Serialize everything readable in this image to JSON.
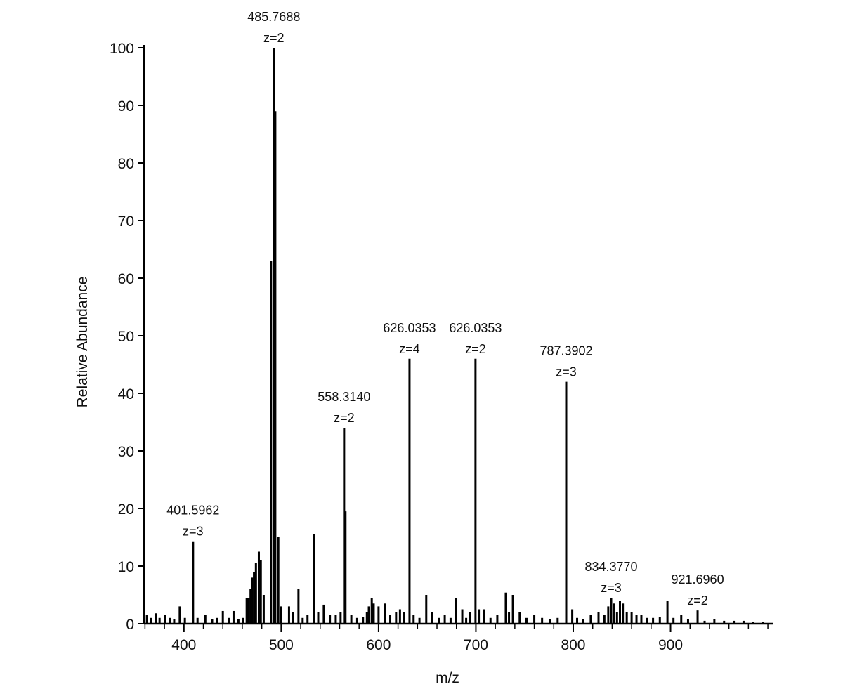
{
  "chart_data": {
    "type": "stem",
    "xlabel": "m/z",
    "ylabel": "Relative Abundance",
    "xlim": [
      359,
      1005
    ],
    "xticks": [
      400,
      500,
      600,
      700,
      800,
      900
    ],
    "xminorticks": [
      360,
      380,
      420,
      440,
      460,
      480,
      520,
      540,
      560,
      580,
      620,
      640,
      660,
      680,
      720,
      740,
      760,
      780,
      820,
      840,
      860,
      880,
      920,
      940,
      960,
      980,
      1000
    ],
    "ylim": [
      0,
      100
    ],
    "yticks": [
      0,
      10,
      20,
      30,
      40,
      50,
      60,
      70,
      80,
      90,
      100
    ],
    "color": "#000000",
    "x": [
      362,
      366,
      371,
      375,
      381,
      386,
      390,
      395.7,
      401,
      409.4,
      414,
      422,
      429,
      434,
      440,
      446,
      451,
      456,
      461,
      464.5,
      466.5,
      468.5,
      470,
      472,
      474,
      477,
      479,
      482,
      489.5,
      492.4,
      493.9,
      497,
      500,
      508,
      512,
      517.7,
      522,
      527,
      533.6,
      538,
      543.7,
      550,
      556,
      561,
      564.6,
      566,
      572,
      578,
      584,
      588,
      590,
      593,
      595,
      600,
      606.5,
      612,
      618,
      622,
      626,
      631.8,
      636,
      642,
      649,
      655,
      662,
      668,
      674,
      679.4,
      686,
      690,
      694,
      699.6,
      703,
      708,
      715,
      722,
      730.7,
      734,
      738,
      745,
      752,
      760,
      768,
      776,
      784,
      792.8,
      799,
      804,
      810,
      818,
      826,
      832,
      836,
      839,
      842,
      845,
      848,
      851,
      855,
      860,
      865,
      870,
      876,
      882,
      889,
      896.8,
      903,
      911,
      918,
      927.8,
      935,
      945,
      955,
      965,
      975,
      985,
      995
    ],
    "values": [
      1.5,
      1,
      1.8,
      1,
      1.5,
      1,
      0.8,
      3,
      1,
      14.3,
      1,
      1.5,
      0.8,
      1,
      2.2,
      1,
      2.2,
      0.8,
      1,
      4.5,
      4.5,
      6,
      8,
      9,
      10.5,
      12.5,
      11,
      5,
      63,
      100,
      89,
      15,
      3,
      3,
      2,
      6,
      1,
      1.5,
      15.5,
      2,
      3.3,
      1.5,
      1.5,
      2,
      34,
      19.5,
      1.5,
      1,
      1.2,
      2,
      3,
      4.5,
      3.5,
      3,
      3.5,
      1.5,
      2,
      2.5,
      2,
      46,
      1.5,
      1,
      5,
      2,
      1,
      1.5,
      1,
      4.5,
      2.5,
      1,
      2,
      46,
      2.5,
      2.5,
      1,
      1.5,
      5.4,
      2,
      5,
      2,
      1,
      1.5,
      1,
      0.8,
      1,
      42,
      2.5,
      1,
      0.8,
      1.5,
      2,
      1.5,
      3,
      4.5,
      3.5,
      2,
      4,
      3.5,
      2,
      2,
      1.5,
      1.5,
      1,
      1,
      1.2,
      4,
      1,
      1.5,
      0.8,
      2.3,
      0.5,
      0.8,
      0.5,
      0.5,
      0.5,
      0.3,
      0.3
    ],
    "annotations": [
      {
        "text": "401.5962",
        "charge": "z=3",
        "x": 409.4,
        "y": 14.3
      },
      {
        "text": "485.7688",
        "charge": "z=2",
        "x": 492.4,
        "y": 100
      },
      {
        "text": "558.3140",
        "charge": "z=2",
        "x": 564.6,
        "y": 34
      },
      {
        "text": "626.0353",
        "charge": "z=4",
        "x": 631.8,
        "y": 46
      },
      {
        "text": "626.0353",
        "charge": "z=2",
        "x": 699.6,
        "y": 46
      },
      {
        "text": "787.3902",
        "charge": "z=3",
        "x": 792.8,
        "y": 42
      },
      {
        "text": "834.3770",
        "charge": "z=3",
        "x": 839,
        "y": 4.5
      },
      {
        "text": "921.6960",
        "charge": "z=2",
        "x": 927.8,
        "y": 2.3
      }
    ]
  }
}
